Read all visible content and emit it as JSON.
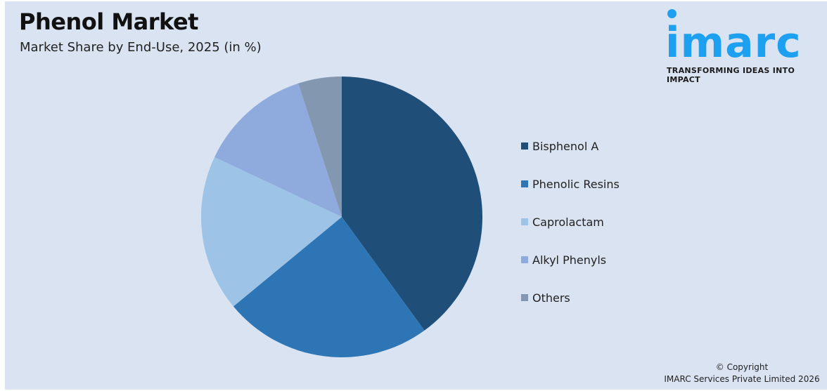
{
  "header": {
    "title": "Phenol Market",
    "subtitle": "Market Share by End-Use, 2025 (in %)"
  },
  "logo": {
    "wordmark": "imarc",
    "tagline": "TRANSFORMING IDEAS INTO IMPACT",
    "color": "#1ea0f0"
  },
  "legend": {
    "items": [
      {
        "label": "Bisphenol A",
        "color": "#1f4e79"
      },
      {
        "label": "Phenolic Resins",
        "color": "#2e75b6"
      },
      {
        "label": "Caprolactam",
        "color": "#9dc3e6"
      },
      {
        "label": "Alkyl Phenyls",
        "color": "#8faadc"
      },
      {
        "label": "Others",
        "color": "#8497b0"
      }
    ]
  },
  "footer": {
    "copyright_line1": "© Copyright",
    "copyright_line2": "IMARC Services Private Limited 2026"
  },
  "chart_data": {
    "type": "pie",
    "title": "Phenol Market",
    "subtitle": "Market Share by End-Use, 2025 (in %)",
    "categories": [
      "Bisphenol A",
      "Phenolic Resins",
      "Caprolactam",
      "Alkyl Phenyls",
      "Others"
    ],
    "values": [
      40,
      24,
      18,
      13,
      5
    ],
    "colors": [
      "#1f4e79",
      "#2e75b6",
      "#9dc3e6",
      "#8faadc",
      "#8497b0"
    ],
    "start_angle": "12 o'clock, clockwise",
    "legend_position": "right",
    "data_labels": false
  }
}
